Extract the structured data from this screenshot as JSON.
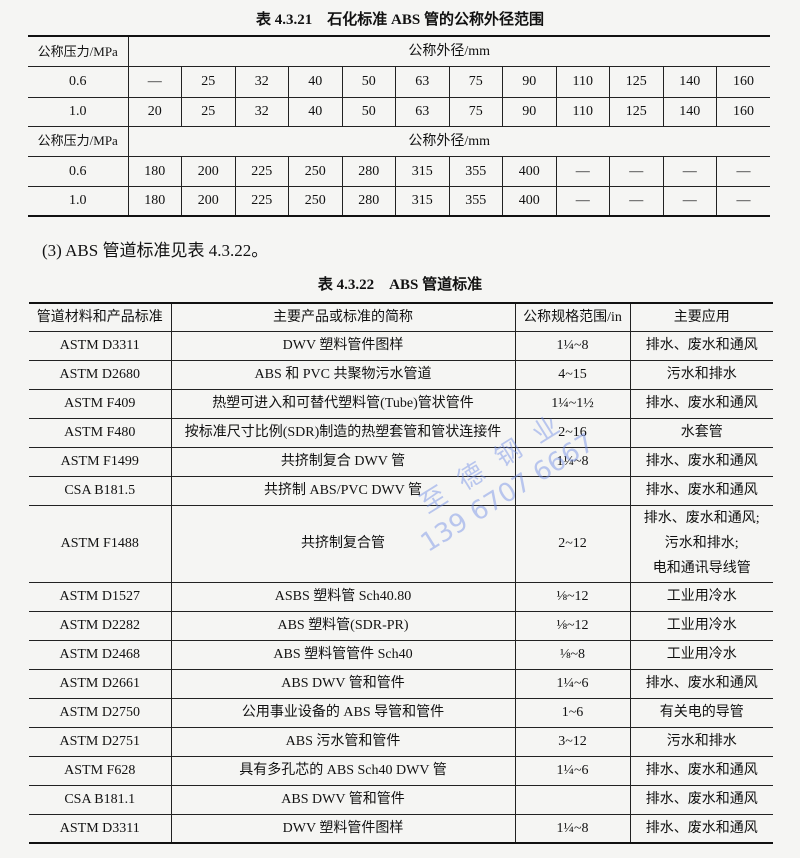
{
  "table1": {
    "caption": "表 4.3.21　石化标准 ABS 管的公称外径范围",
    "header_left": "公称压力/MPa",
    "header_right": "公称外径/mm",
    "blocks": [
      {
        "rows": [
          {
            "pressure": "0.6",
            "values": [
              "—",
              "25",
              "32",
              "40",
              "50",
              "63",
              "75",
              "90",
              "110",
              "125",
              "140",
              "160"
            ]
          },
          {
            "pressure": "1.0",
            "values": [
              "20",
              "25",
              "32",
              "40",
              "50",
              "63",
              "75",
              "90",
              "110",
              "125",
              "140",
              "160"
            ]
          }
        ]
      },
      {
        "rows": [
          {
            "pressure": "0.6",
            "values": [
              "180",
              "200",
              "225",
              "250",
              "280",
              "315",
              "355",
              "400",
              "—",
              "—",
              "—",
              "—"
            ]
          },
          {
            "pressure": "1.0",
            "values": [
              "180",
              "200",
              "225",
              "250",
              "280",
              "315",
              "355",
              "400",
              "—",
              "—",
              "—",
              "—"
            ]
          }
        ]
      }
    ]
  },
  "paragraph": "(3) ABS 管道标准见表 4.3.22。",
  "table2": {
    "caption": "表 4.3.22　ABS 管道标准",
    "headers": [
      "管道材料和产品标准",
      "主要产品或标准的简称",
      "公称规格范围/in",
      "主要应用"
    ],
    "rows": [
      [
        "ASTM D3311",
        "DWV 塑料管件图样",
        "1¼~8",
        "排水、废水和通风"
      ],
      [
        "ASTM D2680",
        "ABS 和 PVC 共聚物污水管道",
        "4~15",
        "污水和排水"
      ],
      [
        "ASTM F409",
        "热塑可进入和可替代塑料管(Tube)管状管件",
        "1¼~1½",
        "排水、废水和通风"
      ],
      [
        "ASTM F480",
        "按标准尺寸比例(SDR)制造的热塑套管和管状连接件",
        "2~16",
        "水套管"
      ],
      [
        "ASTM F1499",
        "共挤制复合 DWV 管",
        "1¼~8",
        "排水、废水和通风"
      ],
      [
        "CSA B181.5",
        "共挤制 ABS/PVC DWV 管",
        "",
        "排水、废水和通风"
      ],
      [
        "ASTM F1488",
        "共挤制复合管",
        "2~12",
        "排水、废水和通风;\n污水和排水;\n电和通讯导线管"
      ],
      [
        "ASTM D1527",
        "ASBS 塑料管 Sch40.80",
        "⅛~12",
        "工业用冷水"
      ],
      [
        "ASTM D2282",
        "ABS 塑料管(SDR-PR)",
        "⅛~12",
        "工业用冷水"
      ],
      [
        "ASTM D2468",
        "ABS 塑料管管件 Sch40",
        "⅛~8",
        "工业用冷水"
      ],
      [
        "ASTM D2661",
        "ABS DWV 管和管件",
        "1¼~6",
        "排水、废水和通风"
      ],
      [
        "ASTM D2750",
        "公用事业设备的 ABS 导管和管件",
        "1~6",
        "有关电的导管"
      ],
      [
        "ASTM D2751",
        "ABS 污水管和管件",
        "3~12",
        "污水和排水"
      ],
      [
        "ASTM F628",
        "具有多孔芯的 ABS Sch40 DWV 管",
        "1¼~6",
        "排水、废水和通风"
      ],
      [
        "CSA B181.1",
        "ABS DWV 管和管件",
        "",
        "排水、废水和通风"
      ],
      [
        "ASTM D3311",
        "DWV 塑料管件图样",
        "1¼~8",
        "排水、废水和通风"
      ]
    ]
  },
  "watermark": {
    "name": "至德钢业",
    "phone": "139 6707 6667",
    "color": "#6e8ce6"
  }
}
